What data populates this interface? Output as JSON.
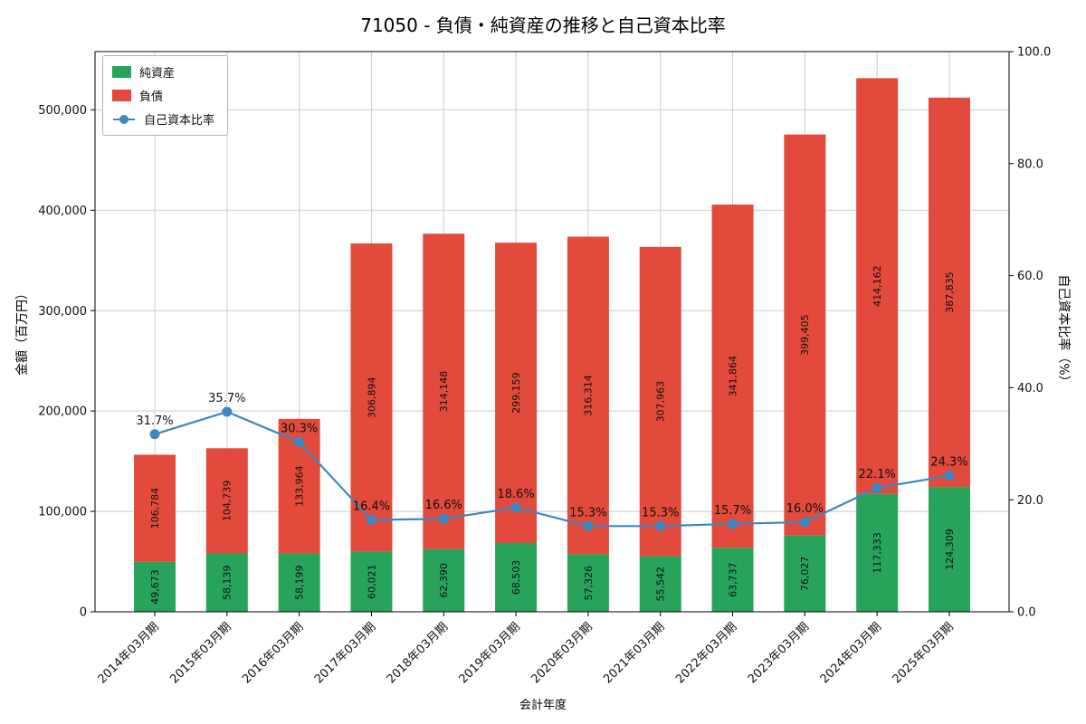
{
  "chart_data": {
    "type": "bar",
    "stacked": true,
    "title": "71050 - 負債・純資産の推移と自己資本比率",
    "xlabel": "会計年度",
    "ylabel_left": "金額（百万円）",
    "ylabel_right": "自己資本比率（%）",
    "categories": [
      "2014年03月期",
      "2015年03月期",
      "2016年03月期",
      "2017年03月期",
      "2018年03月期",
      "2019年03月期",
      "2020年03月期",
      "2021年03月期",
      "2022年03月期",
      "2023年03月期",
      "2024年03月期",
      "2025年03月期"
    ],
    "series": [
      {
        "name": "純資産",
        "color": "#27a35c",
        "values": [
          49673,
          58139,
          58199,
          60021,
          62390,
          68503,
          57326,
          55542,
          63737,
          76027,
          117333,
          124309
        ]
      },
      {
        "name": "負債",
        "color": "#e24a3b",
        "values": [
          106784,
          104739,
          133964,
          306894,
          314148,
          299159,
          316314,
          307963,
          341864,
          399405,
          414162,
          387835
        ]
      }
    ],
    "line": {
      "name": "自己資本比率",
      "color": "#3e87c2",
      "values": [
        31.7,
        35.7,
        30.3,
        16.4,
        16.6,
        18.6,
        15.3,
        15.3,
        15.7,
        16.0,
        22.1,
        24.3
      ],
      "labels": [
        "31.7%",
        "35.7%",
        "30.3%",
        "16.4%",
        "16.6%",
        "18.6%",
        "15.3%",
        "15.3%",
        "15.7%",
        "16.0%",
        "22.1%",
        "24.3%"
      ]
    },
    "ylim_left": [
      0,
      558000
    ],
    "ylim_right": [
      0,
      100
    ],
    "yticks_left": [
      0,
      100000,
      200000,
      300000,
      400000,
      500000
    ],
    "yticks_right": [
      0,
      20,
      40,
      60,
      80,
      100
    ],
    "grid": true,
    "legend_position": "upper left",
    "colors": {
      "grid": "#cccccc",
      "spine": "#000000",
      "bar_label": "#000000"
    }
  }
}
